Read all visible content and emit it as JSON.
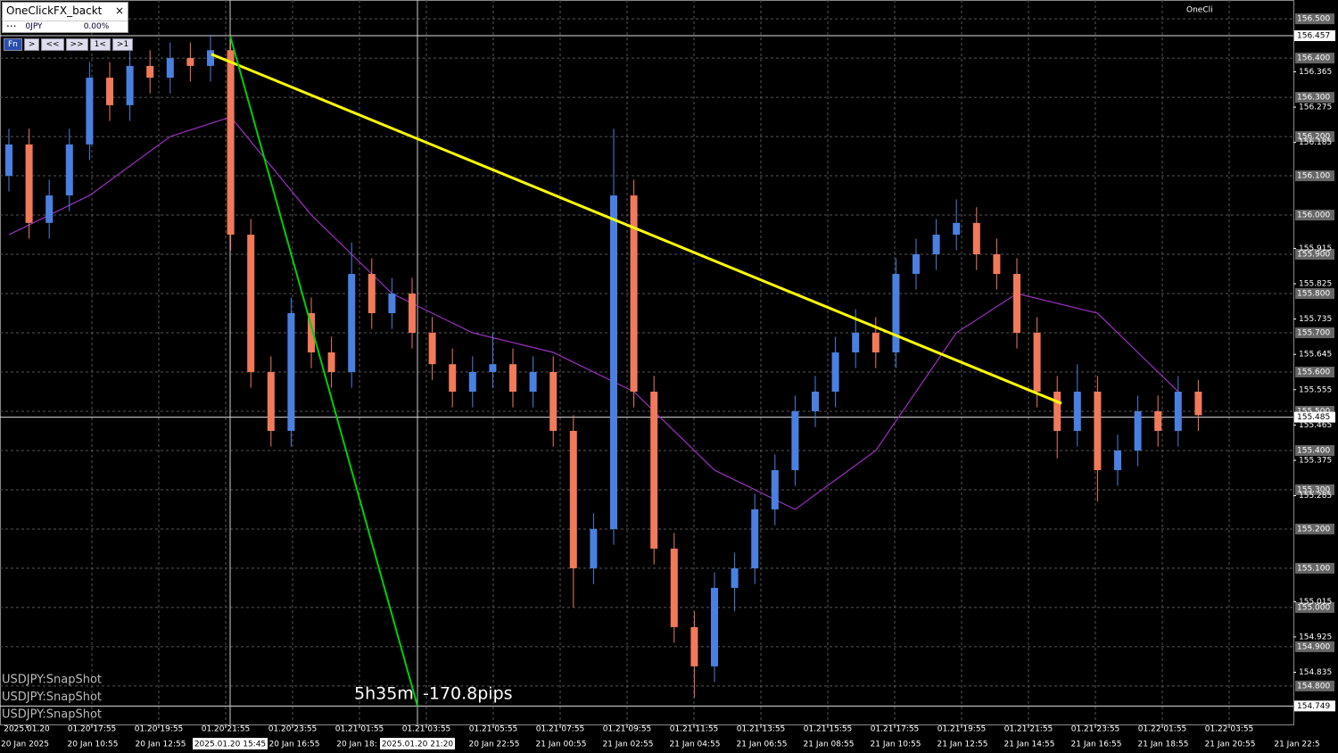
{
  "panel": {
    "title": "OneClickFX_backt ...",
    "close": "×",
    "balance": "0JPY",
    "percent": "0.00%",
    "buttons": [
      "Fn",
      ">",
      "<<",
      ">>",
      "1<",
      ">1"
    ]
  },
  "chart_data": {
    "type": "candlestick",
    "corner_label": "OneCli",
    "symbol_labels": [
      "USDJPY:SnapShot",
      "USDJPY:SnapShot",
      "USDJPY:SnapShot"
    ],
    "measure": {
      "duration": "5h35m",
      "pips": "-170.8pips"
    },
    "ylim": [
      154.702,
      156.548
    ],
    "grid": true,
    "up_color": "#4a80e0",
    "down_color": "#f07a5a",
    "yticks": [
      {
        "value": 156.5,
        "label": "156.500"
      },
      {
        "value": 156.4,
        "label": "156.400"
      },
      {
        "value": 156.3,
        "label": "156.300"
      },
      {
        "value": 156.2,
        "label": "156.200"
      },
      {
        "value": 156.1,
        "label": "156.100"
      },
      {
        "value": 156.0,
        "label": "156.000"
      },
      {
        "value": 155.9,
        "label": "155.900"
      },
      {
        "value": 155.8,
        "label": "155.800"
      },
      {
        "value": 155.7,
        "label": "155.700"
      },
      {
        "value": 155.6,
        "label": "155.600"
      },
      {
        "value": 155.5,
        "label": "155.500"
      },
      {
        "value": 155.4,
        "label": "155.400"
      },
      {
        "value": 155.3,
        "label": "155.300"
      },
      {
        "value": 155.2,
        "label": "155.200"
      },
      {
        "value": 155.1,
        "label": "155.100"
      },
      {
        "value": 155.0,
        "label": "155.000"
      },
      {
        "value": 154.9,
        "label": "154.900"
      },
      {
        "value": 154.8,
        "label": "154.800"
      }
    ],
    "yticks_minor": [
      {
        "value": 156.365,
        "label": "156.365"
      },
      {
        "value": 156.275,
        "label": "156.275"
      },
      {
        "value": 156.185,
        "label": "156.185"
      },
      {
        "value": 155.915,
        "label": "155.915"
      },
      {
        "value": 155.825,
        "label": "155.825"
      },
      {
        "value": 155.735,
        "label": "155.735"
      },
      {
        "value": 155.645,
        "label": "155.645"
      },
      {
        "value": 155.555,
        "label": "155.555"
      },
      {
        "value": 155.465,
        "label": "155.465"
      },
      {
        "value": 155.375,
        "label": "155.375"
      },
      {
        "value": 155.285,
        "label": "155.285"
      },
      {
        "value": 155.015,
        "label": "155.015"
      },
      {
        "value": 154.925,
        "label": "154.925"
      },
      {
        "value": 154.835,
        "label": "154.835"
      }
    ],
    "price_levels": [
      {
        "value": 156.457,
        "label": "156.457"
      },
      {
        "value": 155.485,
        "label": "155.485"
      },
      {
        "value": 154.749,
        "label": "154.749"
      }
    ],
    "x_labels_top": [
      "2025.01.20",
      "01.20 17:55",
      "01.20 19:55",
      "01.20 21:55",
      "01.20 23:55",
      "01.21 01:55",
      "01.21 03:55",
      "01.21 05:55",
      "01.21 07:55",
      "01.21 09:55",
      "01.21 11:55",
      "01.21 13:55",
      "01.21 15:55",
      "01.21 17:55",
      "01.21 19:55",
      "01.21 21:55",
      "01.21 23:55",
      "01.22 01:55",
      "01.22 03:55"
    ],
    "x_labels_bottom": [
      "20 Jan 2025",
      "20 Jan 10:55",
      "20 Jan 12:55",
      "20 Jan 16:55",
      "20 Jan 18:",
      "20 Jan 22:55",
      "21 Jan 00:55",
      "21 Jan 02:55",
      "21 Jan 04:55",
      "21 Jan 06:55",
      "21 Jan 08:55",
      "21 Jan 10:55",
      "21 Jan 12:55",
      "21 Jan 14:55",
      "21 Jan 16:55",
      "21 Jan 18:55",
      "21 Jan 20:55",
      "21 Jan 22:5"
    ],
    "cursor_times": [
      "2025.01.20 15:45",
      "2025.01.20 21:20"
    ],
    "candles": [
      [
        156.1,
        156.22,
        156.06,
        156.18
      ],
      [
        156.18,
        156.22,
        155.94,
        155.98
      ],
      [
        155.98,
        156.09,
        155.94,
        156.05
      ],
      [
        156.05,
        156.22,
        156.01,
        156.18
      ],
      [
        156.18,
        156.39,
        156.14,
        156.35
      ],
      [
        156.35,
        156.39,
        156.24,
        156.28
      ],
      [
        156.28,
        156.42,
        156.24,
        156.38
      ],
      [
        156.38,
        156.42,
        156.31,
        156.35
      ],
      [
        156.35,
        156.44,
        156.31,
        156.4
      ],
      [
        156.4,
        156.44,
        156.34,
        156.38
      ],
      [
        156.38,
        156.46,
        156.34,
        156.42
      ],
      [
        156.42,
        156.46,
        155.91,
        155.95
      ],
      [
        155.95,
        155.99,
        155.56,
        155.6
      ],
      [
        155.6,
        155.64,
        155.41,
        155.45
      ],
      [
        155.45,
        155.79,
        155.41,
        155.75
      ],
      [
        155.75,
        155.79,
        155.61,
        155.65
      ],
      [
        155.65,
        155.69,
        155.56,
        155.6
      ],
      [
        155.6,
        155.93,
        155.56,
        155.85
      ],
      [
        155.85,
        155.89,
        155.71,
        155.75
      ],
      [
        155.75,
        155.84,
        155.71,
        155.8
      ],
      [
        155.8,
        155.84,
        155.66,
        155.7
      ],
      [
        155.7,
        155.74,
        155.58,
        155.62
      ],
      [
        155.62,
        155.66,
        155.51,
        155.55
      ],
      [
        155.55,
        155.64,
        155.51,
        155.6
      ],
      [
        155.6,
        155.7,
        155.56,
        155.62
      ],
      [
        155.62,
        155.66,
        155.51,
        155.55
      ],
      [
        155.55,
        155.64,
        155.51,
        155.6
      ],
      [
        155.6,
        155.64,
        155.41,
        155.45
      ],
      [
        155.45,
        155.49,
        155.0,
        155.1
      ],
      [
        155.1,
        155.24,
        155.06,
        155.2
      ],
      [
        155.2,
        156.22,
        155.16,
        156.05
      ],
      [
        156.05,
        156.09,
        155.51,
        155.55
      ],
      [
        155.55,
        155.59,
        155.11,
        155.15
      ],
      [
        155.15,
        155.19,
        154.91,
        154.95
      ],
      [
        154.95,
        154.99,
        154.77,
        154.85
      ],
      [
        154.85,
        155.09,
        154.81,
        155.05
      ],
      [
        155.05,
        155.14,
        154.99,
        155.1
      ],
      [
        155.1,
        155.29,
        155.06,
        155.25
      ],
      [
        155.25,
        155.39,
        155.21,
        155.35
      ],
      [
        155.35,
        155.54,
        155.31,
        155.5
      ],
      [
        155.5,
        155.59,
        155.46,
        155.55
      ],
      [
        155.55,
        155.69,
        155.51,
        155.65
      ],
      [
        155.65,
        155.76,
        155.61,
        155.7
      ],
      [
        155.7,
        155.74,
        155.61,
        155.65
      ],
      [
        155.65,
        155.89,
        155.61,
        155.85
      ],
      [
        155.85,
        155.94,
        155.81,
        155.9
      ],
      [
        155.9,
        155.99,
        155.86,
        155.95
      ],
      [
        155.95,
        156.04,
        155.91,
        155.98
      ],
      [
        155.98,
        156.02,
        155.86,
        155.9
      ],
      [
        155.9,
        155.94,
        155.81,
        155.85
      ],
      [
        155.85,
        155.89,
        155.66,
        155.7
      ],
      [
        155.7,
        155.74,
        155.51,
        155.55
      ],
      [
        155.55,
        155.59,
        155.38,
        155.45
      ],
      [
        155.45,
        155.62,
        155.41,
        155.55
      ],
      [
        155.55,
        155.59,
        155.27,
        155.35
      ],
      [
        155.35,
        155.44,
        155.31,
        155.4
      ],
      [
        155.4,
        155.54,
        155.36,
        155.5
      ],
      [
        155.5,
        155.54,
        155.41,
        155.45
      ],
      [
        155.45,
        155.59,
        155.41,
        155.55
      ],
      [
        155.55,
        155.58,
        155.45,
        155.49
      ]
    ],
    "moving_average": {
      "color": "#9b30c0",
      "x": [
        0,
        4,
        8,
        11,
        15,
        19,
        23,
        27,
        31,
        35,
        39,
        43,
        47,
        50,
        54,
        58
      ],
      "values": [
        155.95,
        156.05,
        156.2,
        156.25,
        156.0,
        155.8,
        155.7,
        155.65,
        155.55,
        155.35,
        155.25,
        155.4,
        155.7,
        155.8,
        155.75,
        155.55
      ]
    },
    "trendline": {
      "color": "#ffff00",
      "values": [
        156.41,
        155.52
      ]
    },
    "measure_line": {
      "color": "#00d000",
      "values": [
        156.457,
        154.749
      ]
    }
  }
}
